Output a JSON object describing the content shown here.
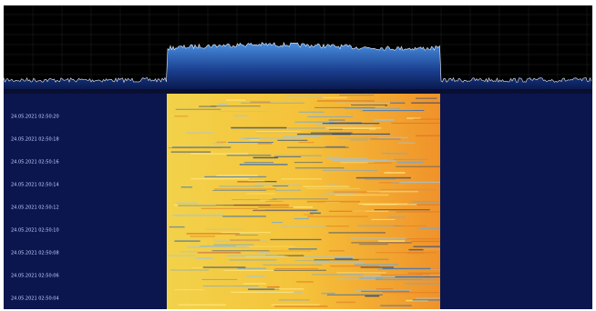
{
  "waterfall": {
    "timestamps": [
      "24.05.2021 02:50:20",
      "24.05.2021 02:50:18",
      "24.05.2021 02:50:16",
      "24.05.2021 02:50:14",
      "24.05.2021 02:50:12",
      "24.05.2021 02:50:10",
      "24.05.2021 02:50:08",
      "24.05.2021 02:50:06",
      "24.05.2021 02:50:04"
    ]
  }
}
